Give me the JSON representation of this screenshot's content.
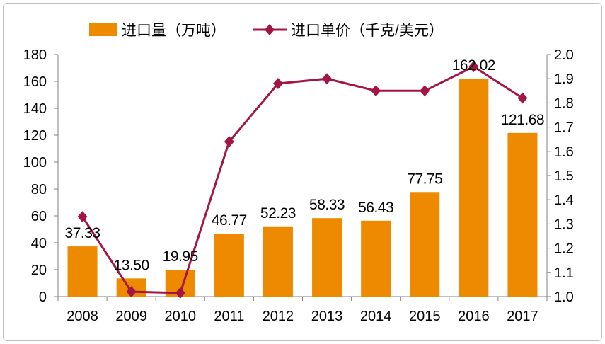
{
  "chart_data": {
    "type": "bar+line",
    "categories": [
      "2008",
      "2009",
      "2010",
      "2011",
      "2012",
      "2013",
      "2014",
      "2015",
      "2016",
      "2017"
    ],
    "series": [
      {
        "name": "进口量（万吨）",
        "type": "bar",
        "axis": "left",
        "color": "#ED8A00",
        "values": [
          37.33,
          13.5,
          19.95,
          46.77,
          52.23,
          58.33,
          56.43,
          77.75,
          162.02,
          121.68
        ],
        "labels": [
          "37.33",
          "13.50",
          "19.95",
          "46.77",
          "52.23",
          "58.33",
          "56.43",
          "77.75",
          "162.02",
          "121.68"
        ]
      },
      {
        "name": "进口单价（千克/美元）",
        "type": "line",
        "axis": "right",
        "color": "#A31545",
        "values": [
          1.33,
          1.02,
          1.015,
          1.64,
          1.88,
          1.9,
          1.85,
          1.85,
          1.95,
          1.82
        ]
      }
    ],
    "y_left": {
      "range": [
        0,
        180
      ],
      "ticks": [
        "0",
        "20",
        "40",
        "60",
        "80",
        "100",
        "120",
        "140",
        "160",
        "180"
      ]
    },
    "y_right": {
      "range": [
        1.0,
        2.0
      ],
      "ticks": [
        "1.0",
        "1.1",
        "1.2",
        "1.3",
        "1.4",
        "1.5",
        "1.6",
        "1.7",
        "1.8",
        "1.9",
        "2.0"
      ]
    },
    "legend_position": "top",
    "grid": false
  }
}
